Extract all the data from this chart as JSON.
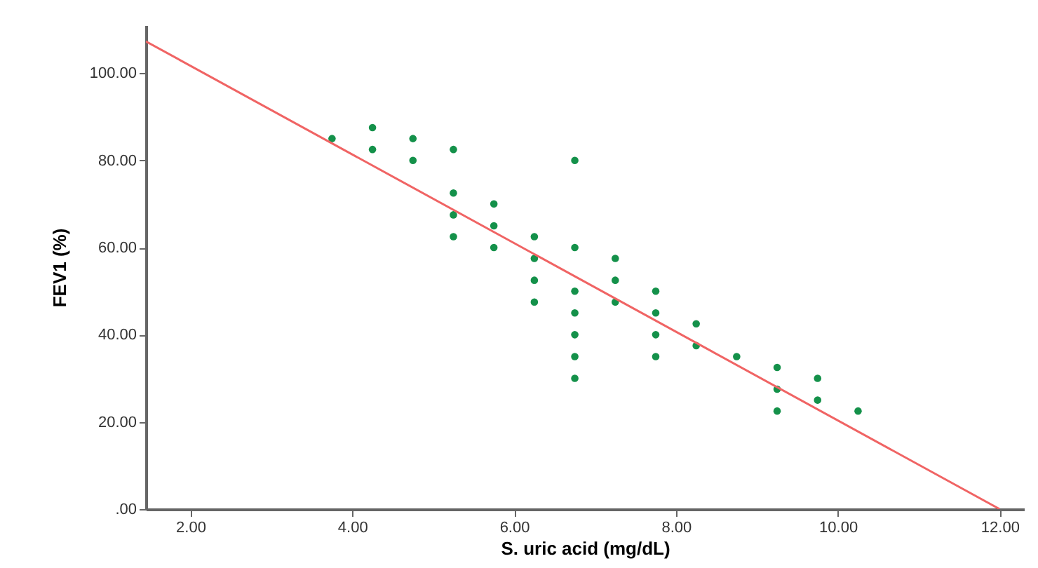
{
  "chart_data": {
    "type": "scatter",
    "xlabel": "S. uric acid (mg/dL)",
    "ylabel": "FEV1 (%)",
    "xlim": [
      1.45,
      12.3
    ],
    "ylim": [
      0,
      111
    ],
    "xticks": [
      {
        "value": 2,
        "label": "2.00"
      },
      {
        "value": 4,
        "label": "4.00"
      },
      {
        "value": 6,
        "label": "6.00"
      },
      {
        "value": 8,
        "label": "8.00"
      },
      {
        "value": 10,
        "label": "10.00"
      },
      {
        "value": 12,
        "label": "12.00"
      }
    ],
    "yticks": [
      {
        "value": 0,
        "label": ".00"
      },
      {
        "value": 20,
        "label": "20.00"
      },
      {
        "value": 40,
        "label": "40.00"
      },
      {
        "value": 60,
        "label": "60.00"
      },
      {
        "value": 80,
        "label": "80.00"
      },
      {
        "value": 100,
        "label": "100.00"
      }
    ],
    "grid": false,
    "series": [
      {
        "color": "#14914a",
        "x": [
          3.75,
          4.25,
          4.25,
          4.75,
          4.75,
          5.25,
          5.25,
          5.25,
          5.25,
          5.75,
          5.75,
          5.75,
          6.25,
          6.25,
          6.25,
          6.25,
          6.75,
          6.75,
          6.75,
          6.75,
          6.75,
          6.75,
          6.75,
          7.25,
          7.25,
          7.25,
          7.75,
          7.75,
          7.75,
          7.75,
          8.25,
          8.25,
          8.75,
          9.25,
          9.25,
          9.25,
          9.75,
          9.75,
          10.25
        ],
        "values": [
          85,
          87.5,
          82.5,
          85,
          80,
          82.5,
          72.5,
          67.5,
          62.5,
          70,
          65,
          60,
          62.5,
          57.5,
          52.5,
          47.5,
          80,
          60,
          50,
          45,
          40,
          35,
          30,
          57.5,
          52.5,
          47.5,
          50,
          45,
          40,
          35,
          42.5,
          37.5,
          35,
          32.5,
          27.5,
          22.5,
          30,
          25,
          22.5
        ]
      },
      {
        "type": "line",
        "color": "#f06464",
        "x": [
          1.45,
          12
        ],
        "values": [
          107.3,
          0
        ]
      }
    ]
  }
}
